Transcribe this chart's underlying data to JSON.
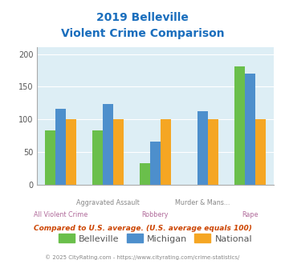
{
  "title_line1": "2019 Belleville",
  "title_line2": "Violent Crime Comparison",
  "categories": [
    "All Violent Crime",
    "Aggravated Assault",
    "Robbery",
    "Murder & Mans...",
    "Rape"
  ],
  "cat_labels_top": [
    "",
    "Aggravated Assault",
    "",
    "Murder & Mans...",
    ""
  ],
  "cat_labels_bot": [
    "All Violent Crime",
    "",
    "Robbery",
    "",
    "Rape"
  ],
  "belleville": [
    83,
    83,
    33,
    0,
    181
  ],
  "michigan": [
    116,
    123,
    66,
    112,
    170
  ],
  "national": [
    100,
    100,
    100,
    100,
    100
  ],
  "bar_colors": {
    "belleville": "#6abf4b",
    "michigan": "#4d8fcc",
    "national": "#f5a623"
  },
  "ylim": [
    0,
    210
  ],
  "yticks": [
    0,
    50,
    100,
    150,
    200
  ],
  "background_color": "#ddeef5",
  "title_color": "#1a6ebd",
  "label_color_top": "#888888",
  "label_color_bot": "#b06a9a",
  "subtitle_text": "Compared to U.S. average. (U.S. average equals 100)",
  "subtitle_color": "#cc4400",
  "footer_text": "© 2025 CityRating.com - https://www.cityrating.com/crime-statistics/",
  "footer_color": "#888888",
  "legend_labels": [
    "Belleville",
    "Michigan",
    "National"
  ]
}
